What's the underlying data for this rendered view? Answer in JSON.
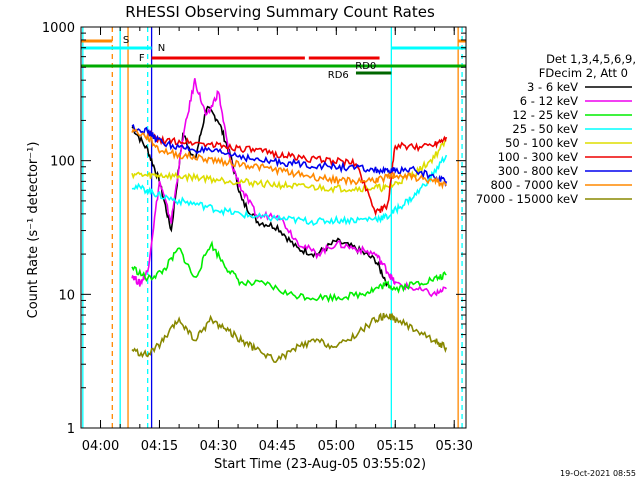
{
  "chart_data": {
    "type": "line",
    "title": "RHESSI Observing Summary Count Rates",
    "xlabel": "Start Time (23-Aug-05 03:55:02)",
    "ylabel": "Count Rate (s⁻¹ detector⁻¹)",
    "xlim": [
      "03:55:02",
      "05:33:00"
    ],
    "ylim": [
      1,
      1000
    ],
    "y_scale": "log",
    "x_ticks": [
      "04:00",
      "04:15",
      "04:30",
      "04:45",
      "05:00",
      "05:15",
      "05:30"
    ],
    "y_ticks": [
      "1",
      "10",
      "100",
      "1000"
    ],
    "timestamp": "19-Oct-2021 08:55",
    "legend": {
      "position": "right",
      "header": [
        "Det 1,3,4,5,6,9,",
        "FDecim 2, Att 0"
      ]
    },
    "series": [
      {
        "name": "3 - 6 keV",
        "color": "#000000",
        "x": [
          "04:08",
          "04:12",
          "04:15",
          "04:18",
          "04:21",
          "04:24",
          "04:27",
          "04:30",
          "04:33",
          "04:36",
          "04:40",
          "04:45",
          "04:50",
          "04:55",
          "05:00",
          "05:05",
          "05:10",
          "05:13"
        ],
        "values": [
          180,
          120,
          70,
          30,
          160,
          100,
          250,
          200,
          110,
          50,
          35,
          32,
          22,
          20,
          25,
          22,
          18,
          12
        ]
      },
      {
        "name": "6 - 12 keV",
        "color": "#ee00ee",
        "x": [
          "04:08",
          "04:10",
          "04:12",
          "04:15",
          "04:18",
          "04:21",
          "04:24",
          "04:27",
          "04:30",
          "04:33",
          "04:36",
          "04:40",
          "04:45",
          "04:50",
          "04:55",
          "05:00",
          "05:05",
          "05:10",
          "05:13",
          "05:15",
          "05:20",
          "05:25",
          "05:28"
        ],
        "values": [
          14,
          12,
          15,
          70,
          35,
          150,
          400,
          210,
          330,
          100,
          60,
          38,
          40,
          25,
          20,
          24,
          22,
          20,
          15,
          12,
          11,
          10,
          11
        ]
      },
      {
        "name": "12 - 25 keV",
        "color": "#00ee00",
        "x": [
          "04:08",
          "04:12",
          "04:16",
          "04:20",
          "04:24",
          "04:28",
          "04:32",
          "04:36",
          "04:42",
          "04:48",
          "04:54",
          "05:00",
          "05:06",
          "05:10",
          "05:13",
          "05:15",
          "05:20",
          "05:25",
          "05:28"
        ],
        "values": [
          16,
          13,
          15,
          22,
          13,
          24,
          16,
          12,
          12,
          10,
          9.5,
          9.5,
          10,
          11,
          12,
          11,
          12,
          13,
          14
        ]
      },
      {
        "name": "25 - 50 keV",
        "color": "#00ffff",
        "x": [
          "04:08",
          "04:12",
          "04:15",
          "04:20",
          "04:25",
          "04:30",
          "04:35",
          "04:40",
          "04:45",
          "04:50",
          "04:55",
          "05:00",
          "05:05",
          "05:10",
          "05:13",
          "05:16",
          "05:20",
          "05:24",
          "05:28"
        ],
        "values": [
          65,
          60,
          55,
          50,
          47,
          43,
          40,
          38,
          37,
          36,
          35,
          36,
          36,
          37,
          38,
          45,
          55,
          75,
          110
        ]
      },
      {
        "name": "50 - 100 keV",
        "color": "#dddd00",
        "x": [
          "04:08",
          "04:12",
          "04:15",
          "04:20",
          "04:25",
          "04:30",
          "04:35",
          "04:40",
          "04:45",
          "04:50",
          "04:55",
          "05:00",
          "05:05",
          "05:10",
          "05:13",
          "05:16",
          "05:20",
          "05:24",
          "05:28"
        ],
        "values": [
          80,
          77,
          78,
          76,
          75,
          72,
          70,
          68,
          66,
          64,
          63,
          62,
          62,
          63,
          62,
          70,
          80,
          100,
          140
        ]
      },
      {
        "name": "100 - 300 keV",
        "color": "#ee0000",
        "x": [
          "04:12",
          "04:15",
          "04:20",
          "04:25",
          "04:30",
          "04:35",
          "04:40",
          "04:45",
          "04:50",
          "04:55",
          "05:00",
          "05:05",
          "05:10",
          "05:13",
          "05:15",
          "05:20",
          "05:25",
          "05:28"
        ],
        "values": [
          160,
          140,
          140,
          135,
          130,
          125,
          118,
          112,
          106,
          102,
          100,
          95,
          42,
          45,
          130,
          125,
          135,
          150
        ]
      },
      {
        "name": "300 - 800 keV",
        "color": "#0000ee",
        "x": [
          "04:08",
          "04:12",
          "04:15",
          "04:20",
          "04:25",
          "04:30",
          "04:35",
          "04:40",
          "04:45",
          "04:50",
          "04:55",
          "05:00",
          "05:05",
          "05:10",
          "05:13",
          "05:15",
          "05:20",
          "05:25",
          "05:28"
        ],
        "values": [
          180,
          165,
          140,
          125,
          120,
          115,
          110,
          100,
          98,
          95,
          92,
          90,
          88,
          85,
          82,
          85,
          85,
          75,
          70
        ]
      },
      {
        "name": "800 - 7000 keV",
        "color": "#ff8800",
        "x": [
          "04:08",
          "04:12",
          "04:15",
          "04:20",
          "04:25",
          "04:30",
          "04:35",
          "04:40",
          "04:45",
          "04:50",
          "04:55",
          "05:00",
          "05:05",
          "05:10",
          "05:13",
          "05:15",
          "05:20",
          "05:25",
          "05:28"
        ],
        "values": [
          170,
          150,
          120,
          110,
          105,
          100,
          95,
          90,
          85,
          80,
          75,
          72,
          70,
          72,
          75,
          78,
          75,
          70,
          65
        ]
      },
      {
        "name": "7000 - 15000 keV",
        "color": "#888800",
        "x": [
          "04:08",
          "04:12",
          "04:16",
          "04:20",
          "04:24",
          "04:28",
          "04:32",
          "04:36",
          "04:40",
          "04:45",
          "04:50",
          "04:55",
          "05:00",
          "05:05",
          "05:10",
          "05:13",
          "05:15",
          "05:20",
          "05:25",
          "05:28"
        ],
        "values": [
          3.8,
          3.5,
          4.5,
          6.5,
          4.5,
          6.5,
          5.5,
          4.5,
          3.8,
          3.2,
          4,
          4.5,
          4,
          5,
          6.5,
          7,
          6.5,
          5.5,
          4.5,
          4
        ]
      }
    ],
    "flags": [
      {
        "label": "S",
        "color": "#ff8800",
        "segments": [
          [
            "03:55",
            "04:03"
          ],
          [
            "05:31",
            "05:33"
          ]
        ]
      },
      {
        "label": "N",
        "color": "#00ffff",
        "segments": [
          [
            "03:55",
            "04:13"
          ],
          [
            "05:14",
            "05:31"
          ],
          [
            "05:31",
            "05:33"
          ]
        ]
      },
      {
        "label": "F",
        "color": "#ee0000",
        "segments": [
          [
            "04:13",
            "04:52"
          ],
          [
            "04:53",
            "05:11"
          ]
        ]
      },
      {
        "label": "RD0",
        "color": "#00aa00",
        "segments": [
          [
            "03:55",
            "05:33"
          ]
        ]
      },
      {
        "label": "RD6",
        "color": "#006600",
        "segments": [
          [
            "05:05",
            "05:14"
          ]
        ]
      }
    ],
    "vertical_markers": [
      {
        "x": "03:55:30",
        "color": "#00ffff",
        "style": "solid"
      },
      {
        "x": "04:03",
        "color": "#ff8800",
        "style": "dashed"
      },
      {
        "x": "04:05",
        "color": "#00ffff",
        "style": "solid"
      },
      {
        "x": "04:07",
        "color": "#ff8800",
        "style": "solid"
      },
      {
        "x": "04:12",
        "color": "#00ffff",
        "style": "dashed"
      },
      {
        "x": "04:13",
        "color": "#0000ee",
        "style": "solid"
      },
      {
        "x": "05:14",
        "color": "#00ffff",
        "style": "solid"
      },
      {
        "x": "05:31",
        "color": "#ff8800",
        "style": "solid"
      },
      {
        "x": "05:32",
        "color": "#00ffff",
        "style": "dashed"
      }
    ]
  }
}
